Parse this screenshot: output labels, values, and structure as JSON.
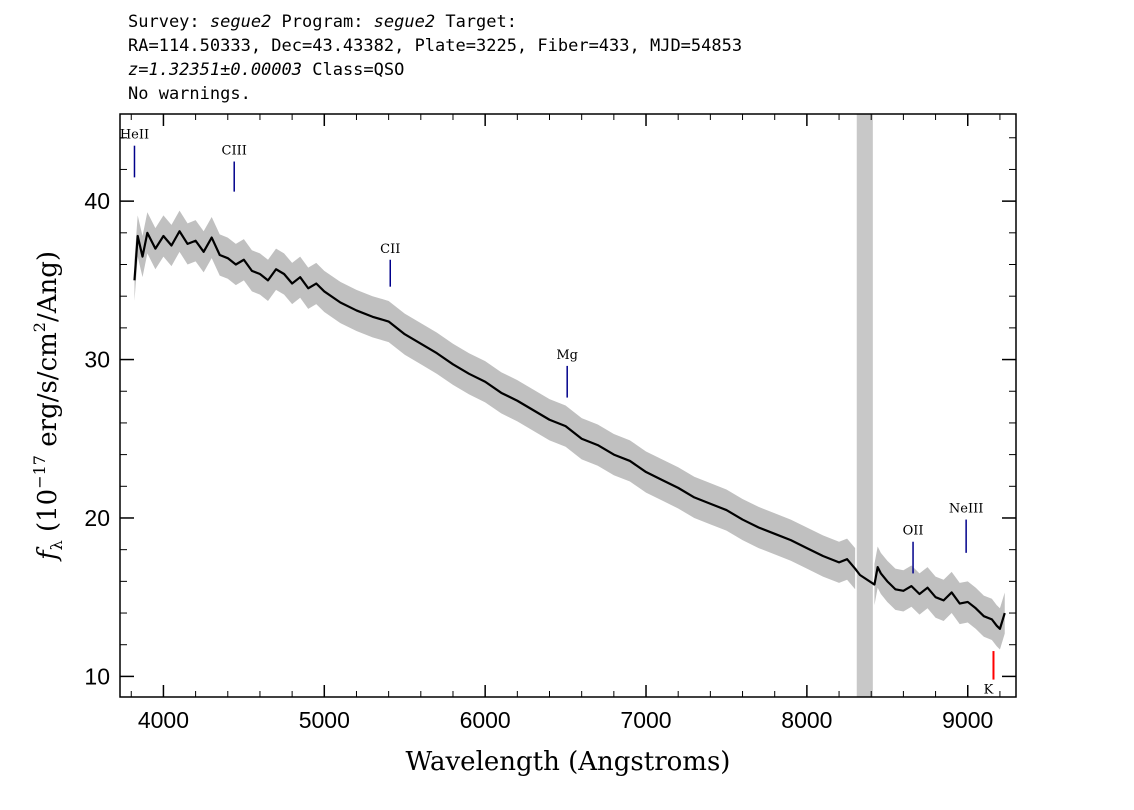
{
  "header": {
    "line1_prefix": "Survey: ",
    "survey": "segue2",
    "line1_mid": " Program: ",
    "program": "segue2",
    "line1_suffix": " Target:",
    "line2": "RA=114.50333, Dec=43.43382, Plate=3225, Fiber=433, MJD=54853",
    "redshift": "z=1.32351±0.00003",
    "class_text": " Class=QSO",
    "warnings": "No warnings."
  },
  "colors": {
    "spectrum": "#000000",
    "error_band": "#c0c0c0",
    "masked_region": "#c8c8c8",
    "emission_line_marker": "#00008b",
    "absorption_line_marker": "#ff0000"
  },
  "chart_data": {
    "type": "line",
    "title": "",
    "xlabel": "Wavelength (Angstroms)",
    "ylabel_parts": {
      "symbol": "f",
      "subscript": "λ",
      "open": " (10",
      "exponent": "−17",
      "mid": " erg/s/cm",
      "squared": "2",
      "close": "/Ang)"
    },
    "xlim": [
      3730,
      9300
    ],
    "ylim": [
      8.7,
      45.5
    ],
    "xticks": [
      4000,
      5000,
      6000,
      7000,
      8000,
      9000
    ],
    "yticks": [
      10,
      20,
      30,
      40
    ],
    "grid": false,
    "series": [
      {
        "role": "flux",
        "x": [
          3820,
          3840,
          3870,
          3900,
          3950,
          4000,
          4050,
          4100,
          4150,
          4200,
          4250,
          4300,
          4350,
          4400,
          4450,
          4500,
          4550,
          4600,
          4650,
          4700,
          4750,
          4800,
          4850,
          4900,
          4950,
          5000,
          5100,
          5200,
          5300,
          5400,
          5500,
          5600,
          5700,
          5800,
          5900,
          6000,
          6100,
          6200,
          6300,
          6400,
          6500,
          6600,
          6700,
          6800,
          6900,
          7000,
          7100,
          7200,
          7300,
          7400,
          7500,
          7600,
          7700,
          7800,
          7900,
          8000,
          8100,
          8200,
          8250,
          8300,
          8330,
          8420,
          8440,
          8460,
          8500,
          8550,
          8600,
          8650,
          8700,
          8750,
          8800,
          8850,
          8900,
          8950,
          9000,
          9050,
          9100,
          9150,
          9180,
          9200,
          9230
        ],
        "y": [
          35.0,
          37.8,
          36.5,
          38.0,
          37.0,
          37.8,
          37.2,
          38.1,
          37.3,
          37.5,
          36.8,
          37.7,
          36.6,
          36.4,
          36.0,
          36.3,
          35.6,
          35.4,
          35.0,
          35.7,
          35.4,
          34.8,
          35.2,
          34.5,
          34.8,
          34.3,
          33.6,
          33.1,
          32.7,
          32.4,
          31.6,
          31.0,
          30.4,
          29.7,
          29.1,
          28.6,
          27.9,
          27.4,
          26.8,
          26.2,
          25.8,
          25.0,
          24.6,
          24.0,
          23.6,
          22.9,
          22.4,
          21.9,
          21.3,
          20.9,
          20.5,
          19.9,
          19.4,
          19.0,
          18.6,
          18.1,
          17.6,
          17.2,
          17.4,
          16.8,
          16.4,
          15.8,
          16.9,
          16.5,
          16.0,
          15.5,
          15.4,
          15.7,
          15.2,
          15.6,
          15.0,
          14.8,
          15.3,
          14.6,
          14.7,
          14.3,
          13.8,
          13.6,
          13.2,
          13.0,
          14.0
        ]
      }
    ],
    "error_band_halfwidth": 1.3,
    "masked_region": [
      8310,
      8410
    ],
    "emission_lines": [
      {
        "label": "HeII",
        "x": 3820,
        "y_bottom": 41.5,
        "y_top": 43.5
      },
      {
        "label": "CIII",
        "x": 4440,
        "y_bottom": 40.6,
        "y_top": 42.5
      },
      {
        "label": "CII",
        "x": 5410,
        "y_bottom": 34.6,
        "y_top": 36.3
      },
      {
        "label": "Mg",
        "x": 6510,
        "y_bottom": 27.6,
        "y_top": 29.6
      },
      {
        "label": "OII",
        "x": 8660,
        "y_bottom": 16.5,
        "y_top": 18.5
      },
      {
        "label": "NeIII",
        "x": 8990,
        "y_bottom": 17.8,
        "y_top": 19.9
      }
    ],
    "absorption_lines": [
      {
        "label": "K",
        "x": 9160,
        "y_bottom": 9.8,
        "y_top": 11.6
      }
    ]
  }
}
